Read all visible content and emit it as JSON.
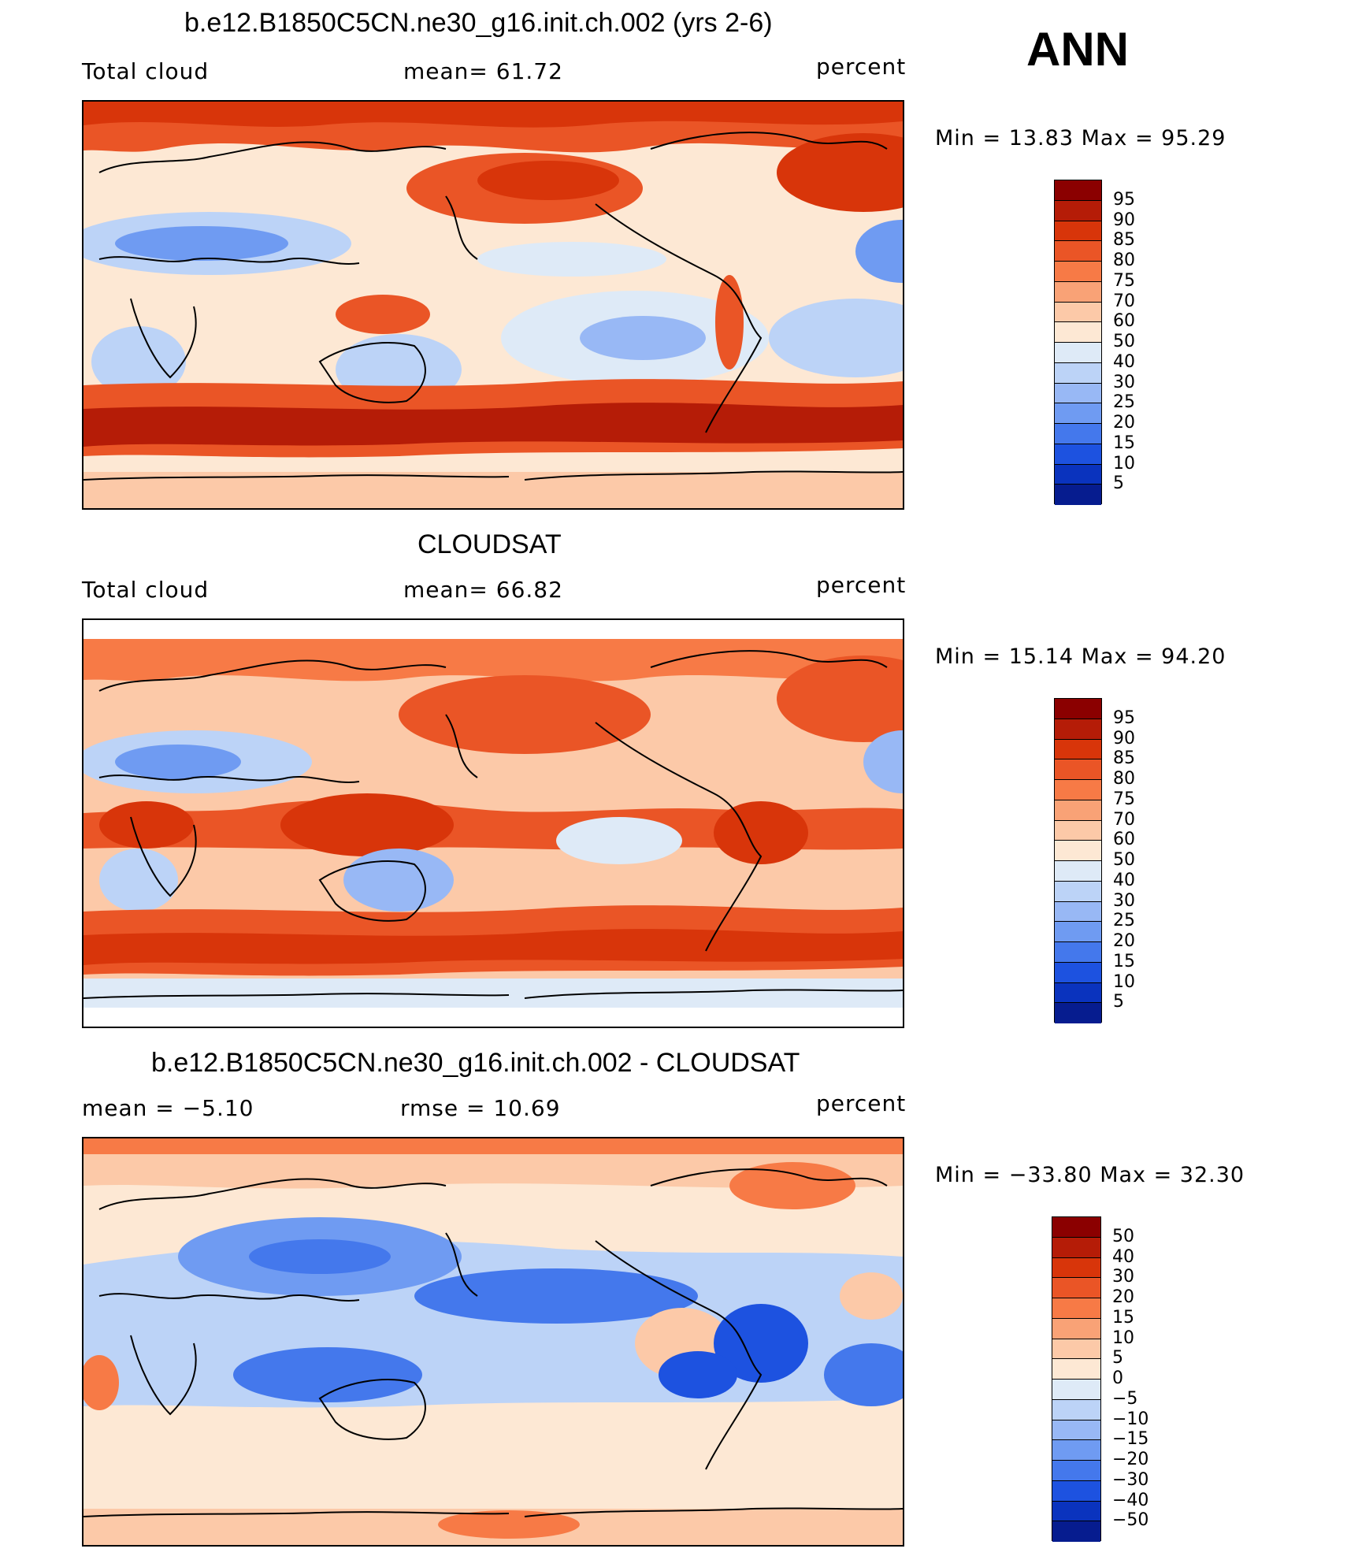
{
  "season": "ANN",
  "panels": [
    {
      "title": "b.e12.B1850C5CN.ne30_g16.init.ch.002 (yrs 2-6)",
      "left_text": "Total cloud",
      "center_text": "mean=   61.72",
      "units": "percent",
      "minmax": "Min =   13.83 Max =   95.29",
      "colorbar_labels": [
        "95",
        "90",
        "85",
        "80",
        "75",
        "70",
        "60",
        "50",
        "40",
        "30",
        "25",
        "20",
        "15",
        "10",
        "5"
      ],
      "colors": [
        "#8b0000",
        "#b51c07",
        "#d8350a",
        "#ea5526",
        "#f77a46",
        "#f9a276",
        "#fcc9a8",
        "#fde8d4",
        "#deeaf7",
        "#bcd3f7",
        "#98b8f5",
        "#6f9bf2",
        "#4478ec",
        "#1d52e0",
        "#0a33be",
        "#061c8f"
      ]
    },
    {
      "title": "CLOUDSAT",
      "left_text": "Total cloud",
      "center_text": "mean=   66.82",
      "units": "percent",
      "minmax": "Min =   15.14 Max =   94.20",
      "colorbar_labels": [
        "95",
        "90",
        "85",
        "80",
        "75",
        "70",
        "60",
        "50",
        "40",
        "30",
        "25",
        "20",
        "15",
        "10",
        "5"
      ],
      "colors": [
        "#8b0000",
        "#b51c07",
        "#d8350a",
        "#ea5526",
        "#f77a46",
        "#f9a276",
        "#fcc9a8",
        "#fde8d4",
        "#deeaf7",
        "#bcd3f7",
        "#98b8f5",
        "#6f9bf2",
        "#4478ec",
        "#1d52e0",
        "#0a33be",
        "#061c8f"
      ]
    },
    {
      "title": "b.e12.B1850C5CN.ne30_g16.init.ch.002 - CLOUDSAT",
      "left_text": "mean =   −5.10",
      "center_text": "rmse =   10.69",
      "units": "percent",
      "minmax": "Min = −33.80 Max =   32.30",
      "colorbar_labels": [
        "50",
        "40",
        "30",
        "20",
        "15",
        "10",
        "5",
        "0",
        "−5",
        "−10",
        "−15",
        "−20",
        "−30",
        "−40",
        "−50"
      ],
      "colors": [
        "#8b0000",
        "#b51c07",
        "#d8350a",
        "#ea5526",
        "#f77a46",
        "#f9a276",
        "#fcc9a8",
        "#fde8d4",
        "#deeaf7",
        "#bcd3f7",
        "#98b8f5",
        "#6f9bf2",
        "#4478ec",
        "#1d52e0",
        "#0a33be",
        "#061c8f"
      ]
    }
  ]
}
